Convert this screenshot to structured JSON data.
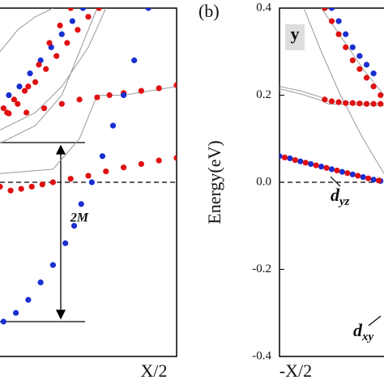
{
  "chart_data": [
    {
      "type": "scatter",
      "xlabel": "X/2",
      "xlim": [
        0,
        1
      ],
      "ylim": [
        -0.4,
        0.4
      ],
      "dashed_zero": true,
      "annotations": [
        "2M"
      ],
      "series": [
        {
          "color": "#999999",
          "style": "line",
          "x": [
            0,
            0.1,
            0.2,
            0.3
          ],
          "values": [
            0.3,
            0.35,
            0.38,
            0.4
          ]
        },
        {
          "color": "#999999",
          "style": "line",
          "x": [
            0,
            0.2,
            0.35,
            0.5,
            0.6
          ],
          "values": [
            0.12,
            0.16,
            0.22,
            0.31,
            0.4
          ]
        },
        {
          "color": "#999999",
          "style": "line",
          "x": [
            0,
            0.2,
            0.35,
            0.45,
            0.55
          ],
          "values": [
            0.09,
            0.13,
            0.2,
            0.3,
            0.4
          ]
        },
        {
          "color": "#999999",
          "style": "line",
          "x": [
            0,
            0.3,
            0.45,
            0.55,
            0.7,
            1
          ],
          "values": [
            0.02,
            0.03,
            0.1,
            0.2,
            0.2,
            0.22
          ]
        },
        {
          "color": "#e01010",
          "style": "dots",
          "x": [
            0.02,
            0.08,
            0.14,
            0.2,
            0.26,
            0.32,
            0.38,
            0.44,
            0.5,
            0.56
          ],
          "values": [
            0.17,
            0.19,
            0.21,
            0.23,
            0.26,
            0.29,
            0.32,
            0.35,
            0.38,
            0.4
          ]
        },
        {
          "color": "#1a2fd0",
          "style": "dots",
          "x": [
            0.05,
            0.11,
            0.17,
            0.23,
            0.29,
            0.35,
            0.41,
            0.47
          ],
          "values": [
            0.2,
            0.22,
            0.25,
            0.28,
            0.31,
            0.34,
            0.37,
            0.4
          ]
        },
        {
          "color": "#e01010",
          "style": "dots",
          "x": [
            0.04,
            0.1,
            0.16,
            0.22,
            0.28,
            0.34,
            0.4
          ],
          "values": [
            0.16,
            0.18,
            0.22,
            0.27,
            0.32,
            0.36,
            0.4
          ]
        },
        {
          "color": "#e01010",
          "style": "dots",
          "x": [
            0.05,
            0.15,
            0.25,
            0.35,
            0.45,
            0.55,
            0.62,
            0.7,
            0.8,
            0.9,
            1
          ],
          "values": [
            0.158,
            0.16,
            0.17,
            0.18,
            0.19,
            0.195,
            0.2,
            0.205,
            0.21,
            0.216,
            0.223
          ]
        },
        {
          "color": "#e01010",
          "style": "dots",
          "x": [
            0,
            0.06,
            0.12,
            0.18,
            0.24,
            0.3,
            0.4,
            0.5,
            0.6,
            0.7,
            0.8,
            0.9,
            1
          ],
          "values": [
            -0.01,
            -0.019,
            -0.015,
            -0.01,
            -0.005,
            0,
            0.008,
            0.015,
            0.025,
            0.034,
            0.042,
            0.05,
            0.056
          ]
        },
        {
          "color": "#1a2fd0",
          "style": "dots",
          "x": [
            0.02,
            0.09,
            0.16,
            0.23,
            0.3,
            0.37,
            0.42,
            0.46,
            0.52,
            0.58,
            0.64,
            0.7,
            0.76,
            0.84
          ],
          "values": [
            -0.32,
            -0.3,
            -0.27,
            -0.23,
            -0.19,
            -0.14,
            -0.1,
            -0.05,
            0,
            0.06,
            0.13,
            0.2,
            0.28,
            0.4
          ]
        }
      ]
    },
    {
      "type": "scatter",
      "xlabel": "-X/2",
      "panel_label": "(b)",
      "inset_label": "y",
      "ylabel": "Energy(eV)",
      "xlim": [
        0,
        0.3
      ],
      "ylim": [
        -0.4,
        0.4
      ],
      "dashed_zero": true,
      "yticks": [
        -0.4,
        -0.2,
        {
          "value": 0,
          "label": "0.0"
        },
        0.2,
        0.4
      ],
      "annotations": [
        {
          "text": "d",
          "sub": "yz"
        },
        {
          "text": "d",
          "sub": "xy"
        }
      ],
      "series": [
        {
          "color": "#999999",
          "style": "line",
          "x": [
            0.07,
            0.12,
            0.175,
            0.24,
            0.3
          ],
          "values": [
            0.4,
            0.3,
            0.2,
            0.1,
            0.02
          ]
        },
        {
          "color": "#999999",
          "style": "line",
          "x": [
            0,
            0.06,
            0.12,
            0.14,
            0.3
          ],
          "values": [
            0.22,
            0.21,
            0.195,
            0.185,
            0.18
          ]
        },
        {
          "color": "#999999",
          "style": "line",
          "x": [
            0,
            0.06,
            0.12,
            0.14,
            0.3
          ],
          "values": [
            0.215,
            0.203,
            0.188,
            0.18,
            0.176
          ]
        },
        {
          "color": "#999999",
          "style": "line",
          "x": [
            0.12,
            0.18,
            0.24,
            0.3
          ],
          "values": [
            0.4,
            0.33,
            0.26,
            0.2
          ]
        },
        {
          "color": "#e01010",
          "style": "dots",
          "x": [
            0.13,
            0.15,
            0.17,
            0.19,
            0.21,
            0.23,
            0.25,
            0.27,
            0.29
          ],
          "values": [
            0.4,
            0.37,
            0.34,
            0.31,
            0.28,
            0.26,
            0.24,
            0.22,
            0.2
          ]
        },
        {
          "color": "#1a2fd0",
          "style": "dots",
          "x": [
            0.15,
            0.17,
            0.19,
            0.21,
            0.23,
            0.25,
            0.27
          ],
          "values": [
            0.4,
            0.37,
            0.34,
            0.31,
            0.29,
            0.27,
            0.25
          ]
        },
        {
          "color": "#e01010",
          "style": "dots",
          "x": [
            0.13,
            0.15,
            0.17,
            0.19,
            0.21,
            0.23,
            0.25,
            0.27,
            0.29
          ],
          "values": [
            0.19,
            0.186,
            0.184,
            0.182,
            0.182,
            0.181,
            0.18,
            0.18,
            0.18
          ]
        },
        {
          "color": "#1a2fd0",
          "style": "dots",
          "x": [
            0,
            0.03,
            0.06,
            0.09,
            0.12,
            0.15,
            0.18,
            0.21,
            0.24,
            0.27,
            0.29
          ],
          "values": [
            0.06,
            0.055,
            0.048,
            0.042,
            0.036,
            0.03,
            0.024,
            0.018,
            0.012,
            0.006,
            0.003
          ]
        },
        {
          "color": "#e01010",
          "style": "dots",
          "x": [
            0.015,
            0.045,
            0.075,
            0.105,
            0.135,
            0.165,
            0.195,
            0.225,
            0.255,
            0.285
          ],
          "values": [
            0.057,
            0.051,
            0.045,
            0.039,
            0.033,
            0.027,
            0.021,
            0.015,
            0.009,
            0.004
          ]
        }
      ]
    }
  ]
}
